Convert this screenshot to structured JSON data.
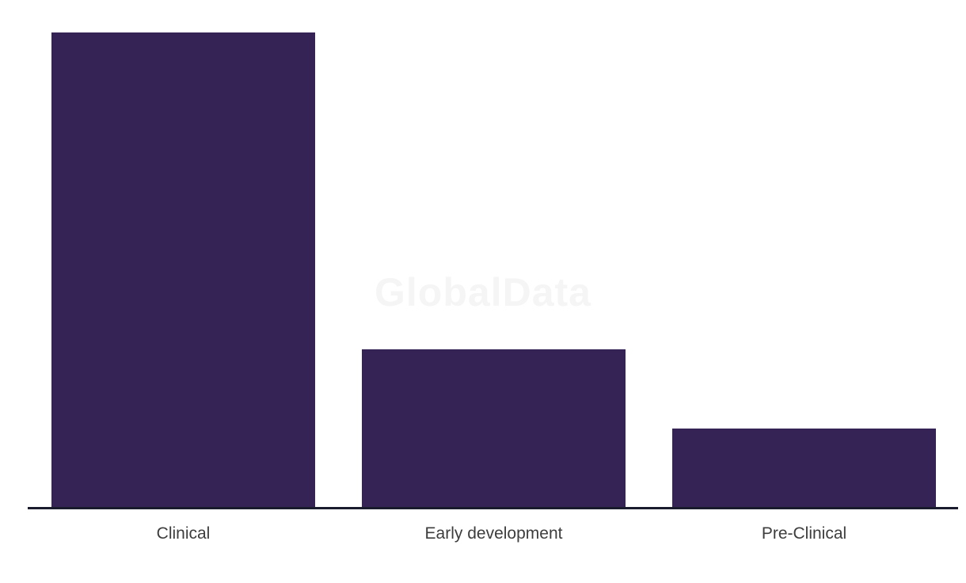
{
  "chart_data": {
    "type": "bar",
    "categories": [
      "Clinical",
      "Early development",
      "Pre-Clinical"
    ],
    "values": [
      6,
      2,
      1
    ],
    "title": "",
    "xlabel": "",
    "ylabel": "",
    "ylim": [
      0,
      6
    ],
    "grid": false,
    "legend": false,
    "y_axis_ticks_visible": false,
    "data_labels_visible": false
  },
  "watermark": {
    "text": "GlobalData"
  },
  "colors": {
    "bar": "#362355",
    "axis_line": "#1b1b2e",
    "label_text": "#3d3d3d",
    "watermark_text": "#f5f5f5",
    "background": "#ffffff"
  }
}
